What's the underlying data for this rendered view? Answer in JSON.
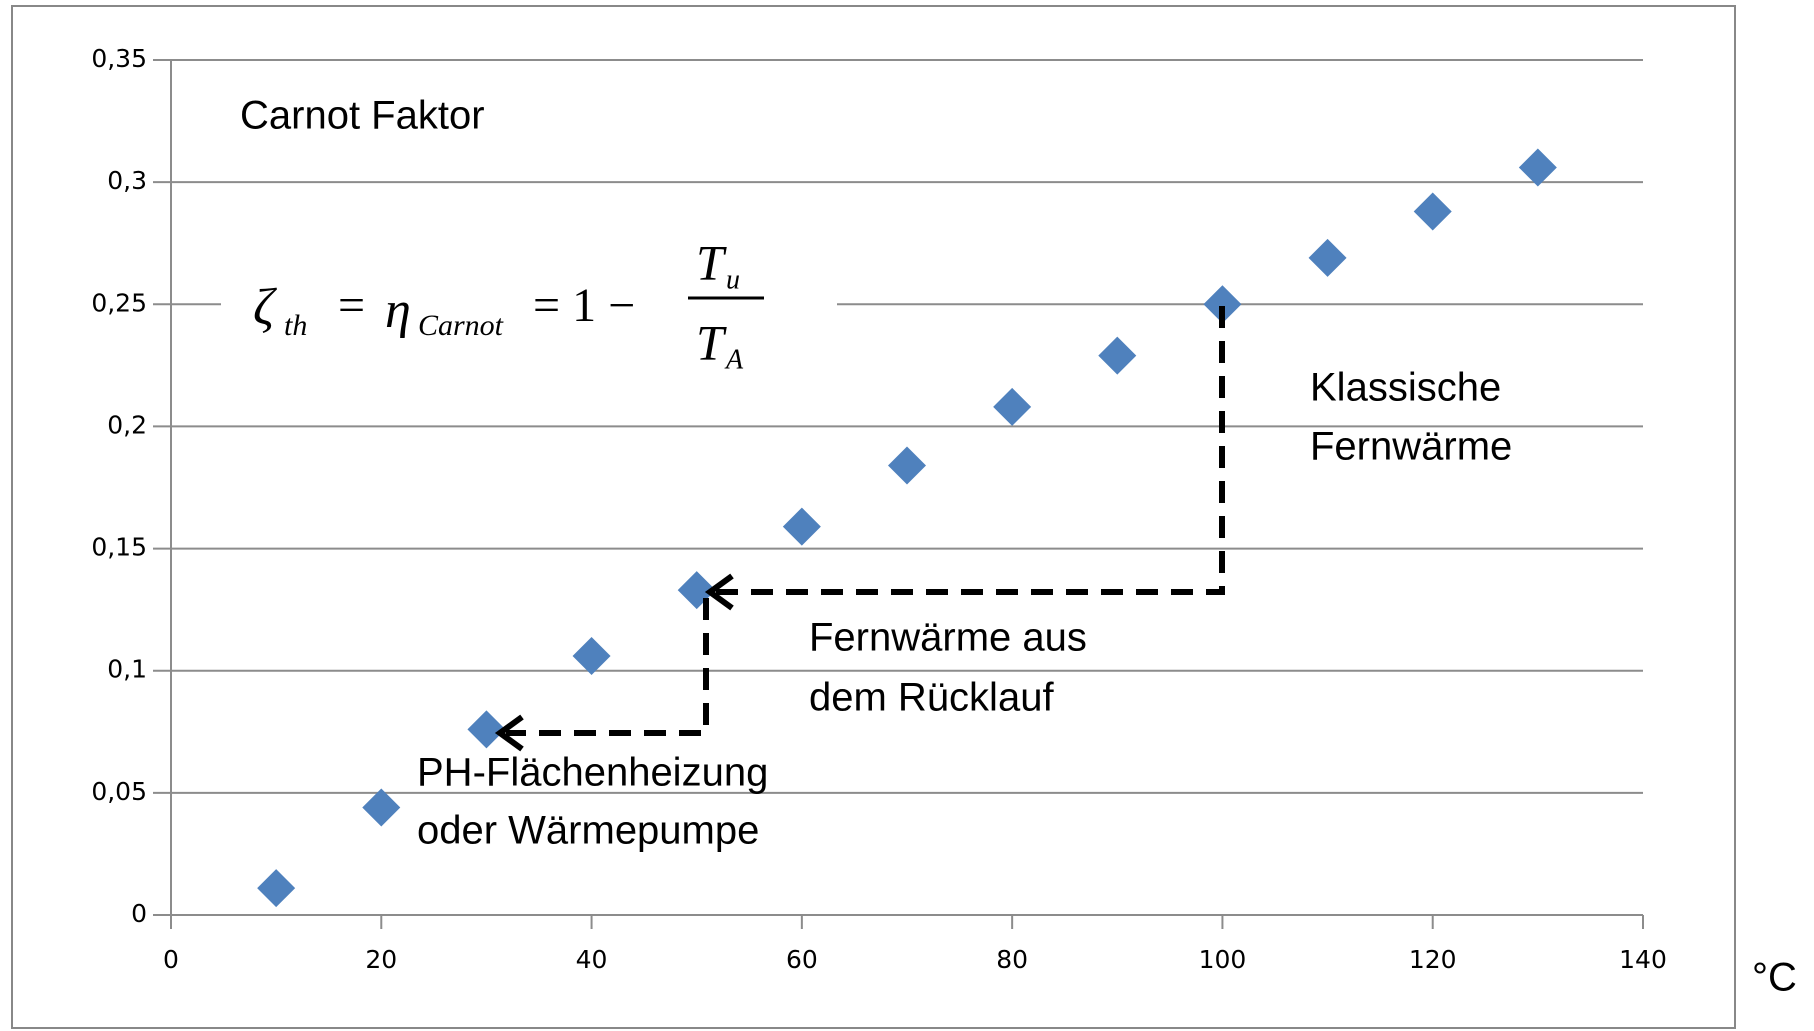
{
  "chart_data": {
    "type": "scatter",
    "title": "Carnot Faktor",
    "formula": {
      "lhs": "ζ",
      "lhs_sub": "th",
      "eq1": "=",
      "mid": "η",
      "mid_sub": "Carnot",
      "eq2": "= 1 −",
      "num": "T",
      "num_sub": "u",
      "den": "T",
      "den_sub": "A"
    },
    "x_unit": "°C",
    "annotations": [
      [
        "Klassische",
        "Fernwärme"
      ],
      [
        "Fernwärme aus",
        "dem Rücklauf"
      ],
      [
        "PH-Flächenheizung",
        "oder Wärmepumpe"
      ]
    ],
    "series": [
      {
        "name": "Carnot Faktor",
        "color": "#4f81bd",
        "x": [
          10,
          20,
          30,
          40,
          50,
          60,
          70,
          80,
          90,
          100,
          110,
          120,
          130
        ],
        "values": [
          0.011,
          0.044,
          0.076,
          0.106,
          0.133,
          0.159,
          0.184,
          0.208,
          0.229,
          0.25,
          0.269,
          0.288,
          0.306
        ]
      }
    ],
    "xlim": [
      0,
      140
    ],
    "xticks": [
      0,
      20,
      40,
      60,
      80,
      100,
      120,
      140
    ],
    "ylim": [
      0,
      0.35
    ],
    "yticks": [
      0,
      {
        "value": 0.05,
        "label": "0,05"
      },
      {
        "value": 0.1,
        "label": "0,1"
      },
      {
        "value": 0.15,
        "label": "0,15"
      },
      {
        "value": 0.2,
        "label": "0,2"
      },
      {
        "value": 0.25,
        "label": "0,25"
      },
      {
        "value": 0.3,
        "label": "0,3"
      },
      {
        "value": 0.35,
        "label": "0,35"
      }
    ],
    "grid": true
  }
}
